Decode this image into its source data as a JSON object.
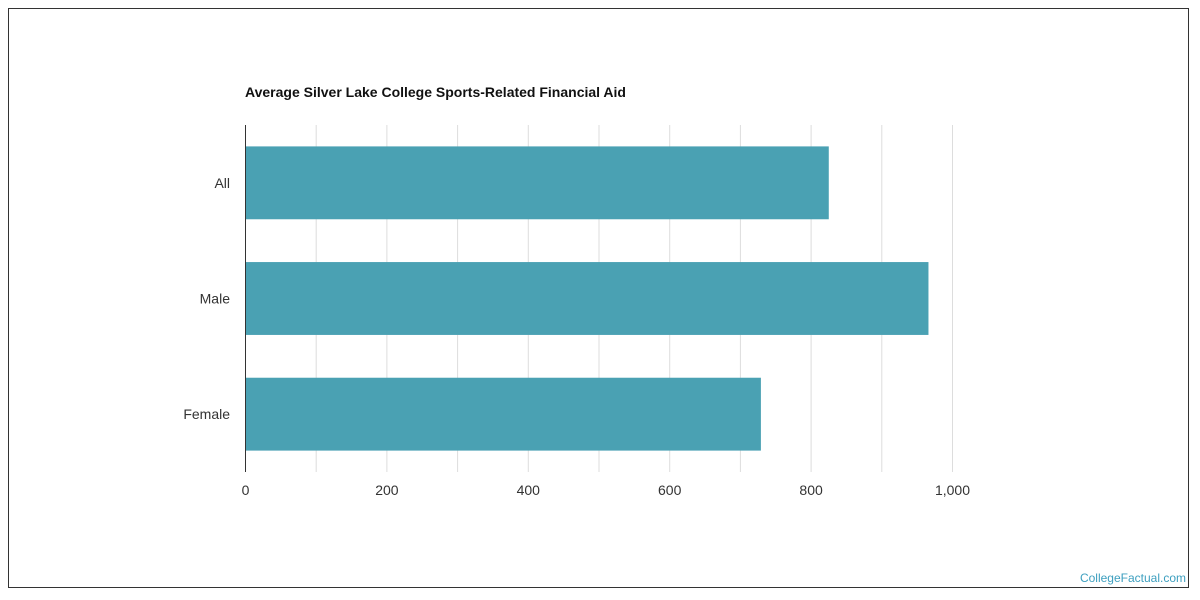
{
  "chart_data": {
    "type": "bar",
    "orientation": "horizontal",
    "title": "Average Silver Lake College Sports-Related Financial Aid",
    "categories": [
      "All",
      "Male",
      "Female"
    ],
    "values": [
      825,
      966,
      729
    ],
    "xlabel": "",
    "ylabel": "",
    "xlim": [
      0,
      1000
    ],
    "x_ticks": [
      0,
      200,
      400,
      600,
      800,
      1000
    ],
    "x_tick_labels": [
      "0",
      "200",
      "400",
      "600",
      "800",
      "1,000"
    ],
    "grid": true,
    "bar_color": "#4aa1b3"
  },
  "watermark": "CollegeFactual.com"
}
